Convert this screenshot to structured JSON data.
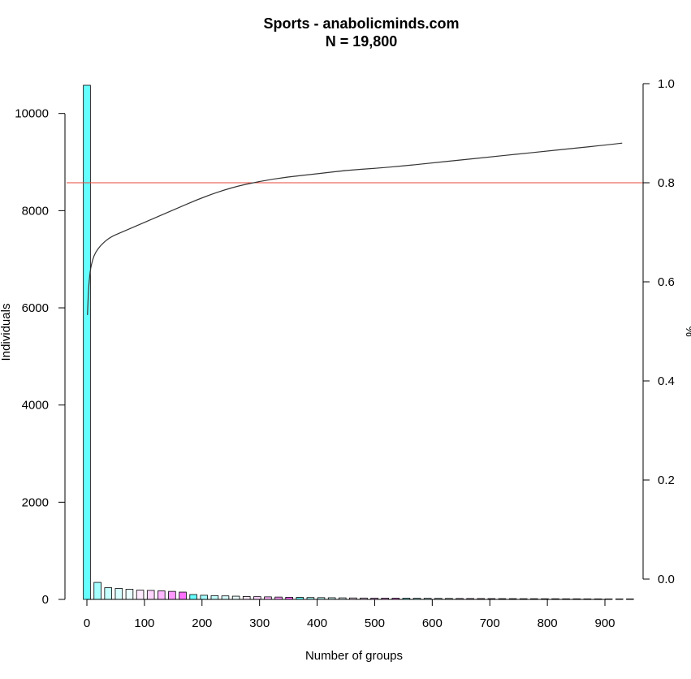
{
  "chart_data": {
    "type": "bar",
    "title": "Sports - anabolicminds.com",
    "subtitle": "N = 19,800",
    "xlabel": "Number of groups",
    "ylabel": "Individuals",
    "y2label": "%",
    "xlim": [
      -13,
      966
    ],
    "ylim": [
      0,
      10600
    ],
    "y2lim": [
      0,
      1.0
    ],
    "x_ticks": [
      "0",
      "100",
      "200",
      "300",
      "400",
      "500",
      "600",
      "700",
      "800",
      "900"
    ],
    "y_ticks": [
      "0",
      "2000",
      "4000",
      "6000",
      "8000",
      "10000"
    ],
    "y2_ticks": [
      "0.0",
      "0.2",
      "0.4",
      "0.6",
      "0.8",
      "1.0"
    ],
    "bin_width": 12.33,
    "bars": [
      {
        "x": 0,
        "value": 10580,
        "color": "#66ffff"
      },
      {
        "x": 18.5,
        "value": 350,
        "color": "#a6ffff"
      },
      {
        "x": 37,
        "value": 240,
        "color": "#c5ffff"
      },
      {
        "x": 55.5,
        "value": 225,
        "color": "#d8ffff"
      },
      {
        "x": 74,
        "value": 210,
        "color": "#eaffff"
      },
      {
        "x": 92.5,
        "value": 190,
        "color": "#ffeaff"
      },
      {
        "x": 111,
        "value": 185,
        "color": "#ffd5ff"
      },
      {
        "x": 129.5,
        "value": 175,
        "color": "#ffb8ff"
      },
      {
        "x": 148,
        "value": 165,
        "color": "#ff99ff"
      },
      {
        "x": 166.5,
        "value": 150,
        "color": "#ff70ff"
      },
      {
        "x": 185,
        "value": 100,
        "color": "#66ffff"
      },
      {
        "x": 203.5,
        "value": 85,
        "color": "#a6ffff"
      },
      {
        "x": 222,
        "value": 78,
        "color": "#c5ffff"
      },
      {
        "x": 240.5,
        "value": 72,
        "color": "#d8ffff"
      },
      {
        "x": 259,
        "value": 66,
        "color": "#eaffff"
      },
      {
        "x": 277.5,
        "value": 60,
        "color": "#ffeaff"
      },
      {
        "x": 296,
        "value": 56,
        "color": "#ffd5ff"
      },
      {
        "x": 314.5,
        "value": 52,
        "color": "#ffb8ff"
      },
      {
        "x": 333,
        "value": 48,
        "color": "#ff99ff"
      },
      {
        "x": 351.5,
        "value": 44,
        "color": "#ff70ff"
      },
      {
        "x": 370,
        "value": 41,
        "color": "#66ffff"
      },
      {
        "x": 388.5,
        "value": 38,
        "color": "#a6ffff"
      },
      {
        "x": 407,
        "value": 36,
        "color": "#c5ffff"
      },
      {
        "x": 425.5,
        "value": 34,
        "color": "#d8ffff"
      },
      {
        "x": 444,
        "value": 32,
        "color": "#eaffff"
      },
      {
        "x": 462.5,
        "value": 30,
        "color": "#ffeaff"
      },
      {
        "x": 481,
        "value": 28,
        "color": "#ffd5ff"
      },
      {
        "x": 499.5,
        "value": 27,
        "color": "#ffb8ff"
      },
      {
        "x": 518,
        "value": 26,
        "color": "#ff99ff"
      },
      {
        "x": 536.5,
        "value": 25,
        "color": "#ff70ff"
      },
      {
        "x": 555,
        "value": 24,
        "color": "#66ffff"
      },
      {
        "x": 573.5,
        "value": 23,
        "color": "#a6ffff"
      },
      {
        "x": 592,
        "value": 22,
        "color": "#c5ffff"
      },
      {
        "x": 610.5,
        "value": 21,
        "color": "#d8ffff"
      },
      {
        "x": 629,
        "value": 20,
        "color": "#eaffff"
      },
      {
        "x": 647.5,
        "value": 19,
        "color": "#ffeaff"
      },
      {
        "x": 666,
        "value": 18,
        "color": "#ffd5ff"
      },
      {
        "x": 684.5,
        "value": 17,
        "color": "#ffb8ff"
      },
      {
        "x": 703,
        "value": 16,
        "color": "#ff99ff"
      },
      {
        "x": 721.5,
        "value": 15,
        "color": "#ff70ff"
      },
      {
        "x": 740,
        "value": 15,
        "color": "#66ffff"
      },
      {
        "x": 758.5,
        "value": 14,
        "color": "#a6ffff"
      },
      {
        "x": 777,
        "value": 14,
        "color": "#c5ffff"
      },
      {
        "x": 795.5,
        "value": 13,
        "color": "#d8ffff"
      },
      {
        "x": 814,
        "value": 13,
        "color": "#eaffff"
      },
      {
        "x": 832.5,
        "value": 12,
        "color": "#ffeaff"
      },
      {
        "x": 851,
        "value": 12,
        "color": "#ffd5ff"
      },
      {
        "x": 869.5,
        "value": 11,
        "color": "#ffb8ff"
      },
      {
        "x": 888,
        "value": 11,
        "color": "#ff99ff"
      },
      {
        "x": 906.5,
        "value": 10,
        "color": "#ff70ff"
      },
      {
        "x": 925,
        "value": 10,
        "color": "#66ffff"
      },
      {
        "x": 943.5,
        "value": 10,
        "color": "#a6ffff"
      }
    ],
    "cumulative_line": {
      "axis": "right",
      "color": "#333333",
      "points": [
        [
          1,
          0.533
        ],
        [
          3,
          0.59
        ],
        [
          6,
          0.625
        ],
        [
          10,
          0.645
        ],
        [
          15,
          0.66
        ],
        [
          25,
          0.675
        ],
        [
          40,
          0.69
        ],
        [
          60,
          0.7
        ],
        [
          100,
          0.72
        ],
        [
          150,
          0.745
        ],
        [
          200,
          0.77
        ],
        [
          250,
          0.79
        ],
        [
          300,
          0.803
        ],
        [
          350,
          0.812
        ],
        [
          400,
          0.818
        ],
        [
          450,
          0.825
        ],
        [
          500,
          0.829
        ],
        [
          550,
          0.834
        ],
        [
          600,
          0.84
        ],
        [
          650,
          0.846
        ],
        [
          700,
          0.852
        ],
        [
          750,
          0.858
        ],
        [
          800,
          0.864
        ],
        [
          850,
          0.87
        ],
        [
          900,
          0.876
        ],
        [
          930,
          0.88
        ]
      ]
    },
    "reference_line": {
      "axis": "right",
      "value": 0.8,
      "color": "#e8473a"
    },
    "grid": false,
    "legend": "none"
  }
}
